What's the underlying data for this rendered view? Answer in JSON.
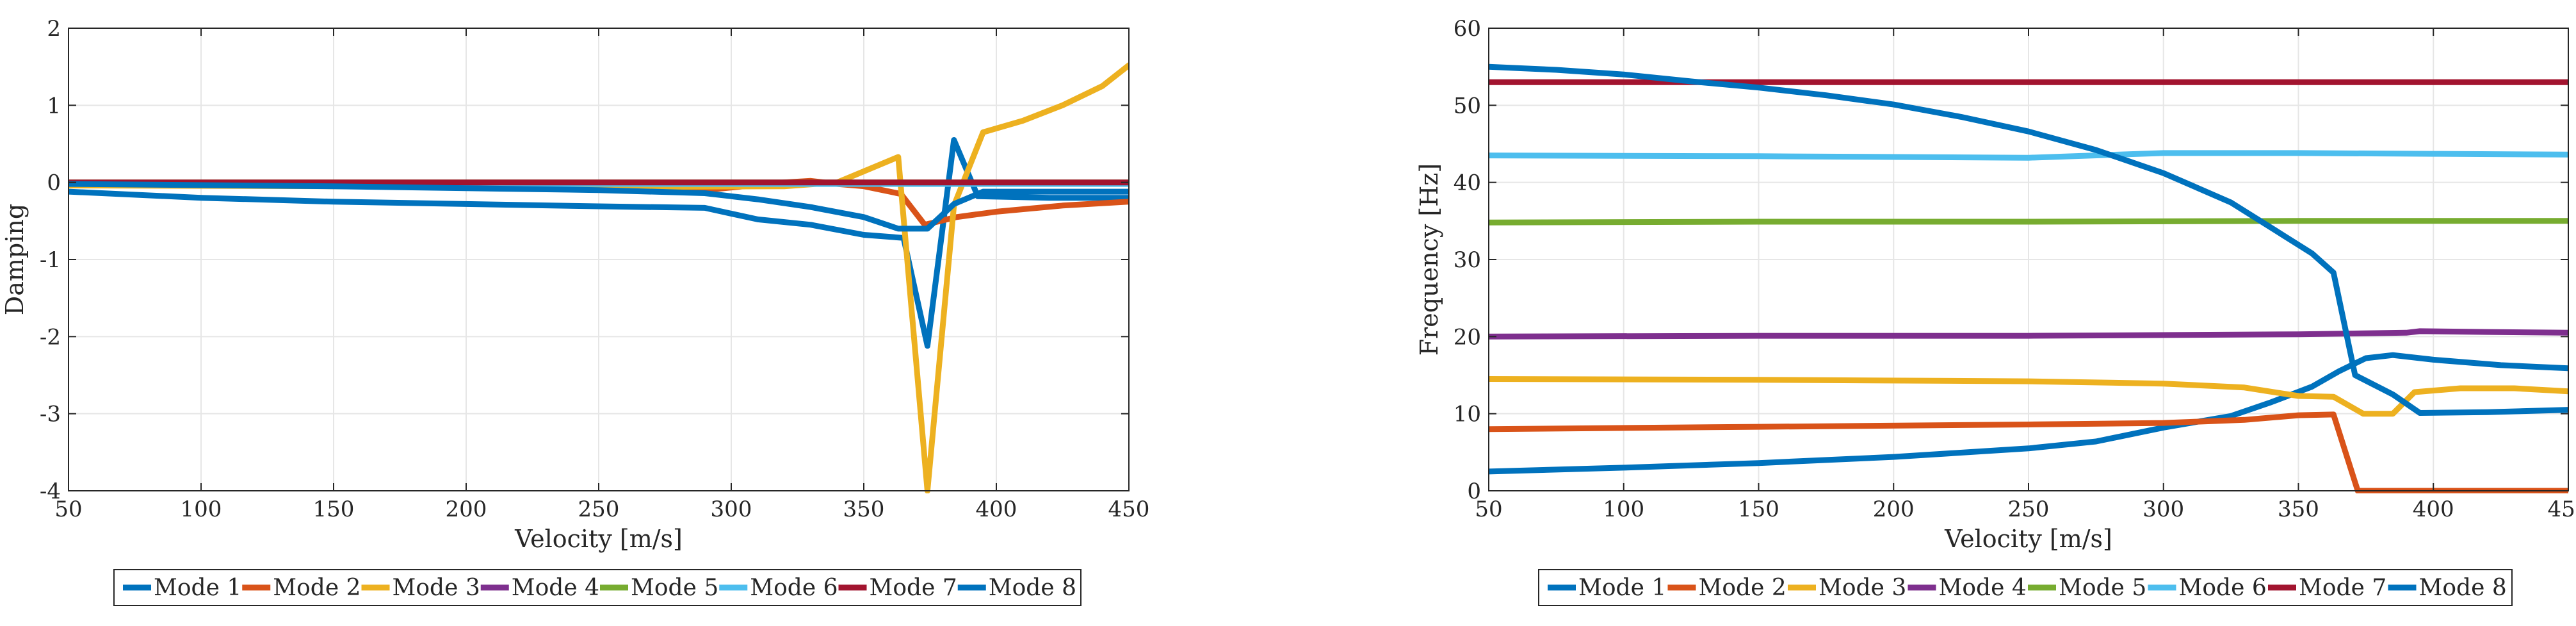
{
  "chart_data": [
    {
      "type": "line",
      "xlabel": "Velocity [m/s]",
      "ylabel": "Damping",
      "xlim": [
        50,
        450
      ],
      "ylim": [
        -4,
        2
      ],
      "grid": true,
      "legend_position": "bottom",
      "xticks": [
        50,
        100,
        150,
        200,
        250,
        300,
        350,
        400,
        450
      ],
      "yticks": [
        2,
        1,
        0,
        -1,
        -2,
        -3,
        -4
      ],
      "series": [
        {
          "name": "Mode 1",
          "color": "#0072BD",
          "points": [
            [
              50,
              -0.12
            ],
            [
              100,
              -0.2
            ],
            [
              150,
              -0.25
            ],
            [
              200,
              -0.28
            ],
            [
              250,
              -0.31
            ],
            [
              290,
              -0.33
            ],
            [
              310,
              -0.48
            ],
            [
              330,
              -0.55
            ],
            [
              350,
              -0.68
            ],
            [
              365,
              -0.72
            ],
            [
              374,
              -2.12
            ],
            [
              384,
              0.55
            ],
            [
              393,
              -0.18
            ],
            [
              420,
              -0.2
            ],
            [
              450,
              -0.2
            ]
          ]
        },
        {
          "name": "Mode 2",
          "color": "#D95319",
          "points": [
            [
              50,
              -0.02
            ],
            [
              150,
              -0.04
            ],
            [
              250,
              -0.07
            ],
            [
              290,
              -0.1
            ],
            [
              305,
              -0.05
            ],
            [
              320,
              0.0
            ],
            [
              330,
              0.02
            ],
            [
              340,
              -0.02
            ],
            [
              350,
              -0.05
            ],
            [
              364,
              -0.15
            ],
            [
              373,
              -0.55
            ],
            [
              385,
              -0.45
            ],
            [
              400,
              -0.38
            ],
            [
              425,
              -0.3
            ],
            [
              450,
              -0.25
            ]
          ]
        },
        {
          "name": "Mode 3",
          "color": "#EDB120",
          "points": [
            [
              50,
              -0.04
            ],
            [
              150,
              -0.05
            ],
            [
              250,
              -0.06
            ],
            [
              320,
              -0.05
            ],
            [
              340,
              0.0
            ],
            [
              363,
              0.33
            ],
            [
              374,
              -4.0
            ],
            [
              384,
              -0.3
            ],
            [
              395,
              0.65
            ],
            [
              410,
              0.8
            ],
            [
              425,
              1.0
            ],
            [
              440,
              1.25
            ],
            [
              450,
              1.52
            ]
          ]
        },
        {
          "name": "Mode 4",
          "color": "#7E2F8E",
          "points": [
            [
              50,
              -0.01
            ],
            [
              150,
              -0.01
            ],
            [
              250,
              -0.01
            ],
            [
              350,
              -0.01
            ],
            [
              450,
              -0.01
            ]
          ]
        },
        {
          "name": "Mode 5",
          "color": "#77AC30",
          "points": [
            [
              50,
              0.0
            ],
            [
              150,
              0.0
            ],
            [
              250,
              0.0
            ],
            [
              350,
              0.0
            ],
            [
              450,
              0.0
            ]
          ]
        },
        {
          "name": "Mode 6",
          "color": "#4DBEEE",
          "points": [
            [
              50,
              -0.02
            ],
            [
              150,
              -0.02
            ],
            [
              250,
              -0.02
            ],
            [
              350,
              -0.02
            ],
            [
              450,
              -0.02
            ]
          ]
        },
        {
          "name": "Mode 7",
          "color": "#A2142F",
          "points": [
            [
              50,
              0.0
            ],
            [
              150,
              0.0
            ],
            [
              250,
              0.0
            ],
            [
              350,
              0.0
            ],
            [
              450,
              0.0
            ]
          ]
        },
        {
          "name": "Mode 8",
          "color": "#0072BD",
          "points": [
            [
              50,
              -0.02
            ],
            [
              150,
              -0.05
            ],
            [
              250,
              -0.1
            ],
            [
              290,
              -0.14
            ],
            [
              310,
              -0.22
            ],
            [
              330,
              -0.32
            ],
            [
              350,
              -0.45
            ],
            [
              363,
              -0.6
            ],
            [
              374,
              -0.6
            ],
            [
              384,
              -0.28
            ],
            [
              395,
              -0.12
            ],
            [
              420,
              -0.12
            ],
            [
              450,
              -0.12
            ]
          ]
        }
      ]
    },
    {
      "type": "line",
      "xlabel": "Velocity [m/s]",
      "ylabel": "Frequency [Hz]",
      "xlim": [
        50,
        450
      ],
      "ylim": [
        0,
        60
      ],
      "grid": true,
      "legend_position": "bottom",
      "xticks": [
        50,
        100,
        150,
        200,
        250,
        300,
        350,
        400,
        450
      ],
      "yticks": [
        60,
        50,
        40,
        30,
        20,
        10,
        0
      ],
      "series": [
        {
          "name": "Mode 1",
          "color": "#0072BD",
          "points": [
            [
              50,
              2.5
            ],
            [
              100,
              3.0
            ],
            [
              150,
              3.6
            ],
            [
              200,
              4.4
            ],
            [
              250,
              5.5
            ],
            [
              275,
              6.4
            ],
            [
              300,
              8.2
            ],
            [
              325,
              9.7
            ],
            [
              340,
              11.5
            ],
            [
              355,
              13.5
            ],
            [
              365,
              15.5
            ],
            [
              375,
              17.2
            ],
            [
              385,
              17.6
            ],
            [
              400,
              17.0
            ],
            [
              425,
              16.3
            ],
            [
              450,
              15.9
            ]
          ]
        },
        {
          "name": "Mode 2",
          "color": "#D95319",
          "points": [
            [
              50,
              8.0
            ],
            [
              150,
              8.3
            ],
            [
              250,
              8.6
            ],
            [
              300,
              8.8
            ],
            [
              330,
              9.2
            ],
            [
              350,
              9.8
            ],
            [
              363,
              9.9
            ],
            [
              372,
              0.0
            ],
            [
              400,
              0.0
            ],
            [
              450,
              0.0
            ]
          ]
        },
        {
          "name": "Mode 3",
          "color": "#EDB120",
          "points": [
            [
              50,
              14.5
            ],
            [
              150,
              14.4
            ],
            [
              250,
              14.2
            ],
            [
              300,
              13.9
            ],
            [
              330,
              13.4
            ],
            [
              350,
              12.3
            ],
            [
              363,
              12.2
            ],
            [
              374,
              10.0
            ],
            [
              385,
              10.0
            ],
            [
              393,
              12.8
            ],
            [
              410,
              13.3
            ],
            [
              430,
              13.3
            ],
            [
              450,
              12.9
            ]
          ]
        },
        {
          "name": "Mode 4",
          "color": "#7E2F8E",
          "points": [
            [
              50,
              20.0
            ],
            [
              150,
              20.1
            ],
            [
              250,
              20.1
            ],
            [
              350,
              20.3
            ],
            [
              390,
              20.5
            ],
            [
              395,
              20.7
            ],
            [
              420,
              20.6
            ],
            [
              450,
              20.5
            ]
          ]
        },
        {
          "name": "Mode 5",
          "color": "#77AC30",
          "points": [
            [
              50,
              34.8
            ],
            [
              150,
              34.9
            ],
            [
              250,
              34.9
            ],
            [
              350,
              35.0
            ],
            [
              450,
              35.0
            ]
          ]
        },
        {
          "name": "Mode 6",
          "color": "#4DBEEE",
          "points": [
            [
              50,
              43.5
            ],
            [
              150,
              43.4
            ],
            [
              250,
              43.2
            ],
            [
              300,
              43.8
            ],
            [
              350,
              43.8
            ],
            [
              400,
              43.7
            ],
            [
              450,
              43.6
            ]
          ]
        },
        {
          "name": "Mode 7",
          "color": "#A2142F",
          "points": [
            [
              50,
              53.0
            ],
            [
              150,
              53.0
            ],
            [
              250,
              53.0
            ],
            [
              350,
              53.0
            ],
            [
              450,
              53.0
            ]
          ]
        },
        {
          "name": "Mode 8",
          "color": "#0072BD",
          "points": [
            [
              50,
              55.0
            ],
            [
              75,
              54.6
            ],
            [
              100,
              54.0
            ],
            [
              125,
              53.1
            ],
            [
              150,
              52.3
            ],
            [
              175,
              51.3
            ],
            [
              200,
              50.1
            ],
            [
              225,
              48.5
            ],
            [
              250,
              46.6
            ],
            [
              275,
              44.2
            ],
            [
              300,
              41.2
            ],
            [
              325,
              37.4
            ],
            [
              345,
              33.0
            ],
            [
              355,
              30.8
            ],
            [
              363,
              28.3
            ],
            [
              371,
              15.0
            ],
            [
              385,
              12.5
            ],
            [
              395,
              10.1
            ],
            [
              420,
              10.2
            ],
            [
              450,
              10.5
            ]
          ]
        }
      ]
    }
  ]
}
